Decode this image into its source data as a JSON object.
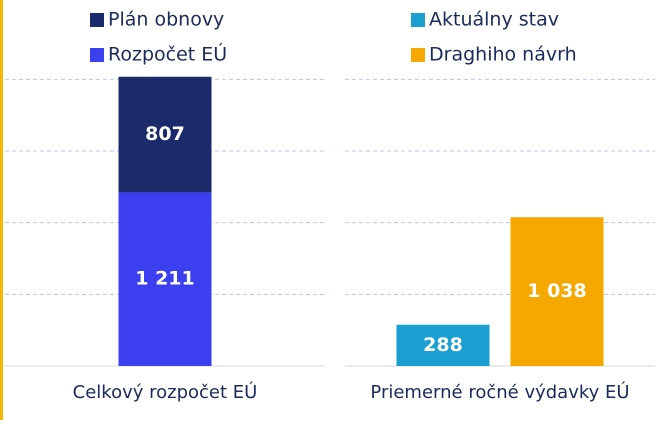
{
  "chart_data": [
    {
      "type": "stacked_bar",
      "categories": [
        "Celkový rozpočet EÚ"
      ],
      "series": [
        {
          "name": "Rozpočet EÚ",
          "color": "#3c3ff0",
          "values": [
            1211
          ],
          "value_labels": [
            "1 211"
          ]
        },
        {
          "name": "Plán obnovy",
          "color": "#1b2a6b",
          "values": [
            807
          ]
        }
      ],
      "ylim": [
        0,
        2100
      ],
      "yticks": [
        0,
        500,
        1000,
        1500,
        2000
      ],
      "grid": true
    },
    {
      "type": "bar",
      "categories": [
        "Priemerné ročné výdavky EÚ"
      ],
      "series": [
        {
          "name": "Aktuálny stav",
          "color": "#1a9fd0",
          "values": [
            288
          ]
        },
        {
          "name": "Draghiho návrh",
          "color": "#f5a800",
          "values": [
            1038
          ],
          "value_labels": [
            "1 038"
          ]
        }
      ],
      "ylim": [
        0,
        2100
      ],
      "yticks": [
        0,
        500,
        1000,
        1500,
        2000
      ],
      "grid": true
    }
  ]
}
